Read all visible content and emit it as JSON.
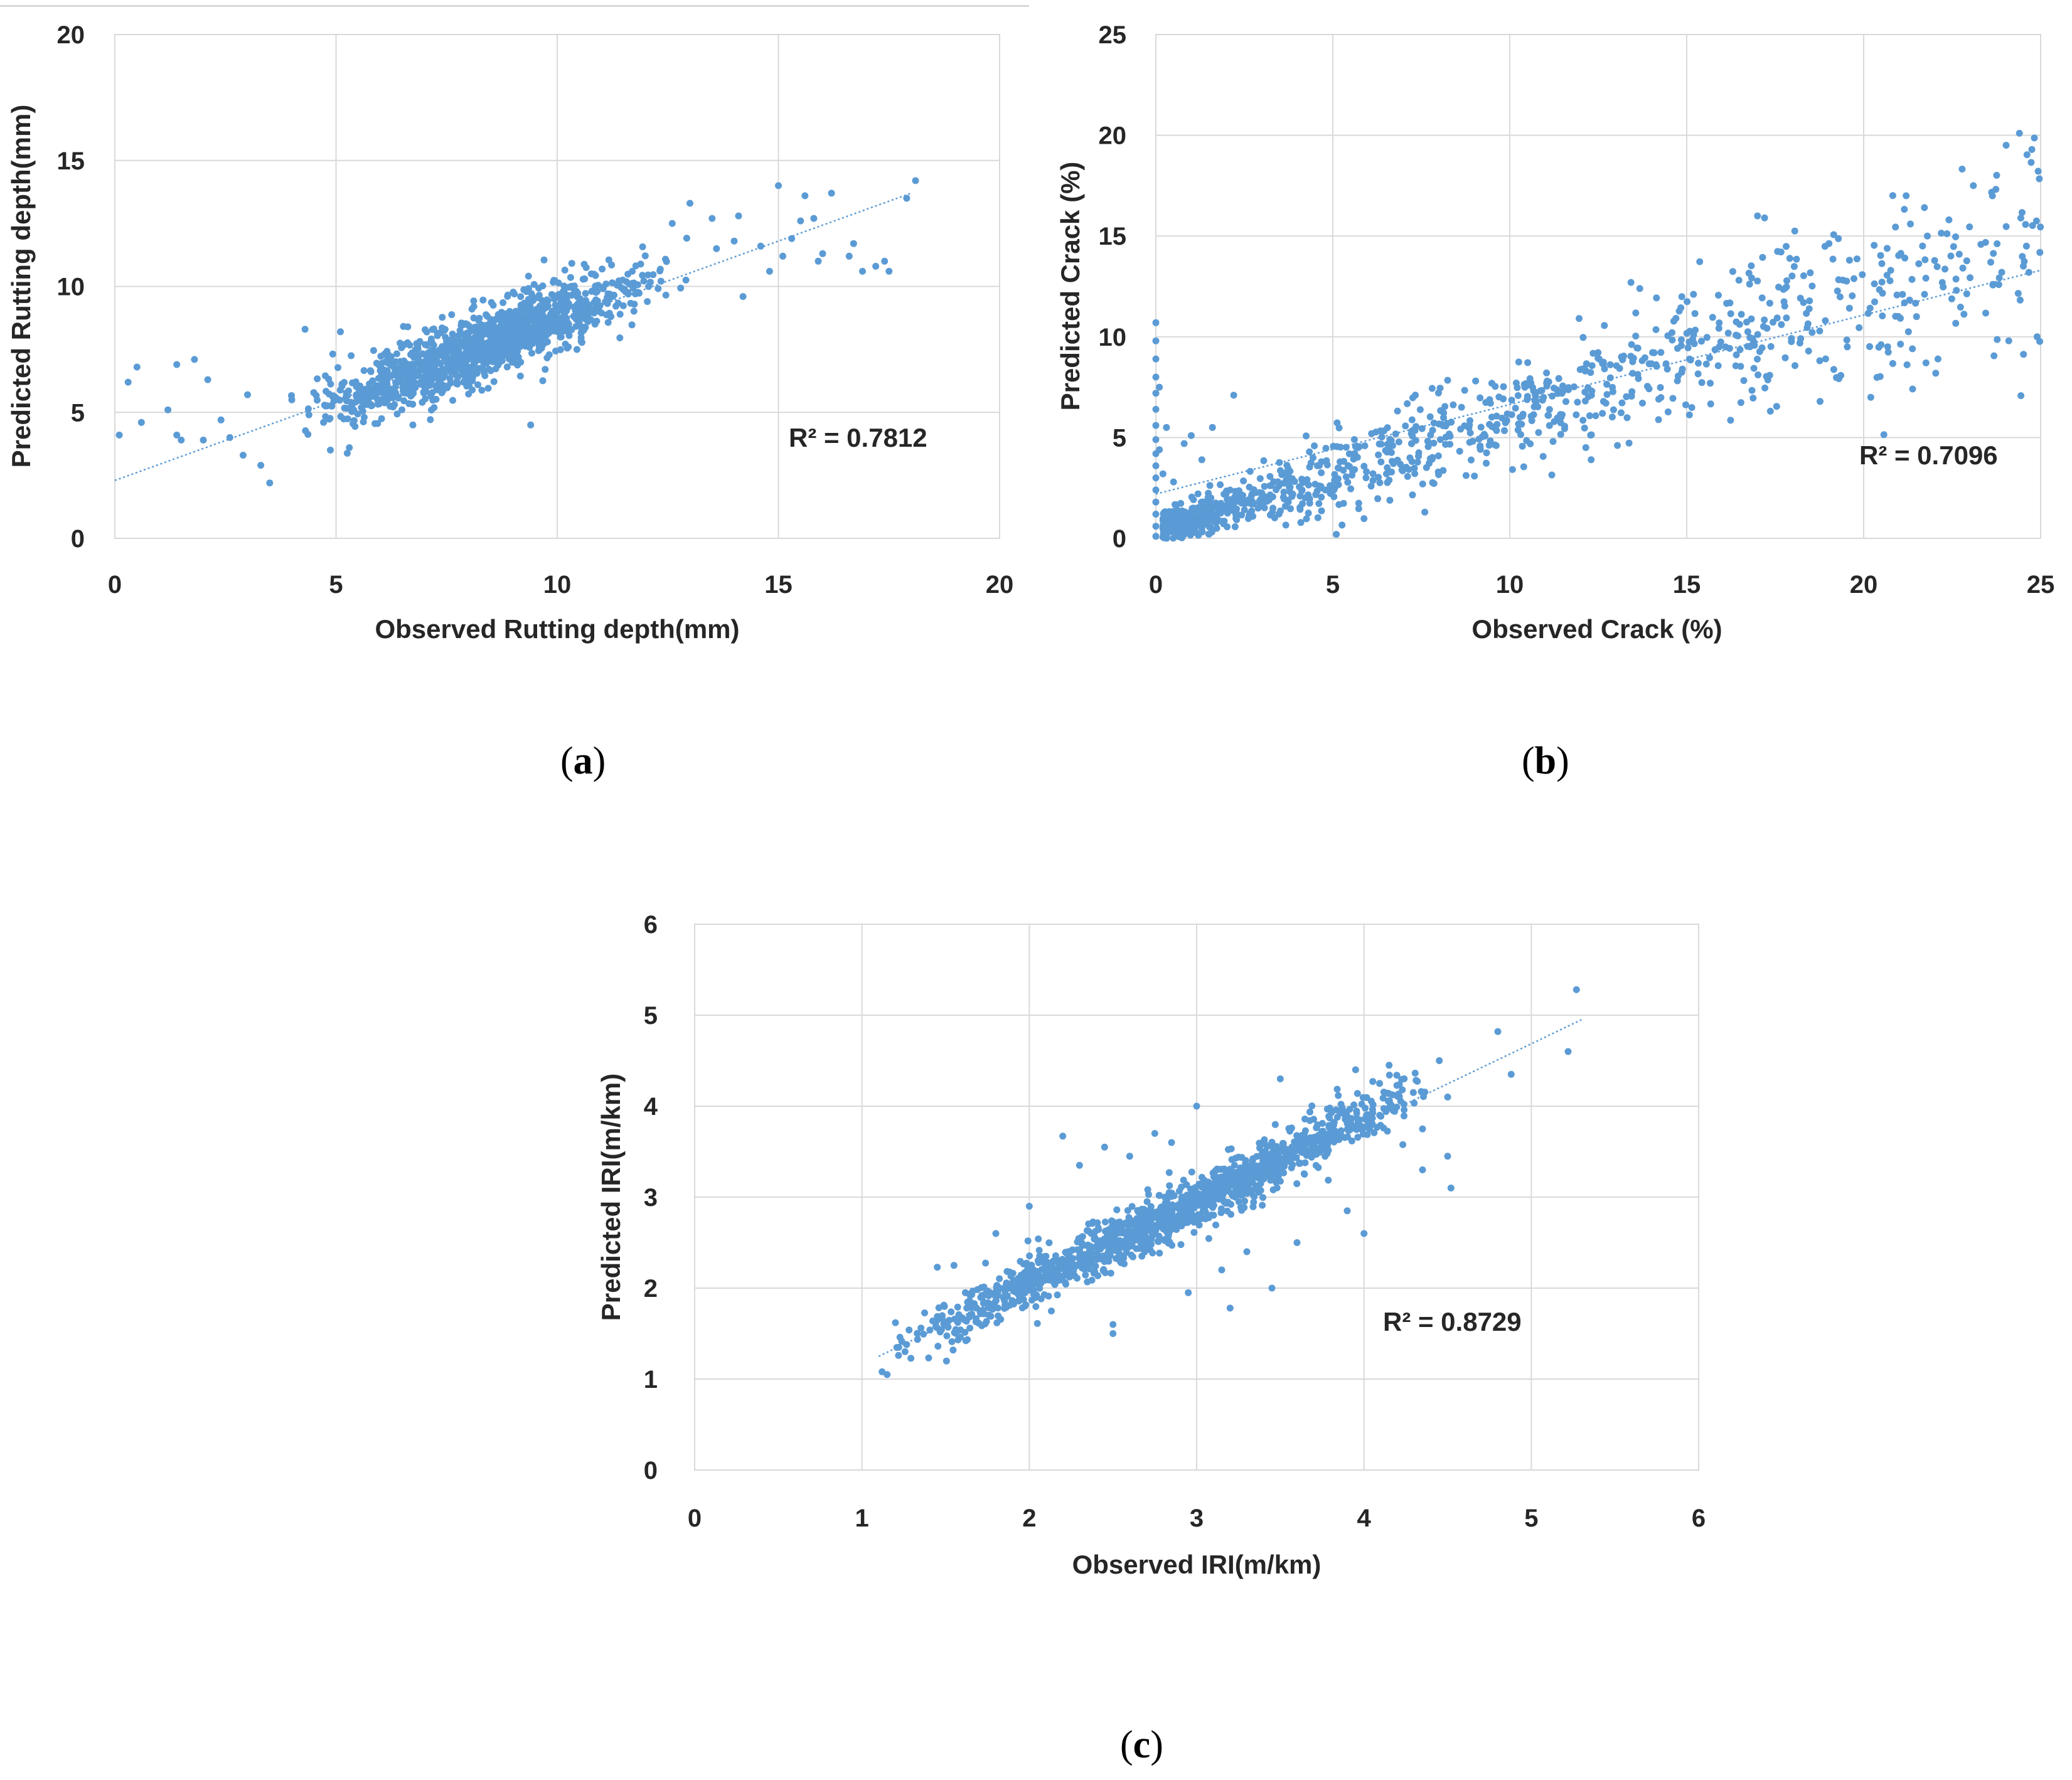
{
  "chart_data": [
    {
      "id": "a",
      "type": "scatter",
      "caption_letter": "a",
      "xlabel": "Observed Rutting depth(mm)",
      "ylabel": "Predicted Rutting depth(mm)",
      "xlim": [
        0,
        20
      ],
      "ylim": [
        0,
        20
      ],
      "xticks": [
        0,
        5,
        10,
        15,
        20
      ],
      "yticks": [
        0,
        5,
        10,
        15,
        20
      ],
      "grid": true,
      "marker_color": "#5b9bd5",
      "r2_text": "R² = 0.7812",
      "trendline": {
        "x": [
          0,
          18
        ],
        "y": [
          2.3,
          13.7
        ]
      },
      "cluster": {
        "x_min": 3.2,
        "x_max": 13.5,
        "slope": 0.68,
        "intercept": 2.0,
        "n": 1300,
        "spread": 0.75
      },
      "outliers": [
        [
          0.1,
          4.1
        ],
        [
          0.3,
          6.2
        ],
        [
          0.5,
          6.8
        ],
        [
          0.6,
          4.6
        ],
        [
          1.2,
          5.1
        ],
        [
          1.4,
          6.9
        ],
        [
          1.4,
          4.1
        ],
        [
          1.5,
          3.9
        ],
        [
          1.8,
          7.1
        ],
        [
          2.0,
          3.9
        ],
        [
          2.1,
          6.3
        ],
        [
          2.4,
          4.7
        ],
        [
          2.6,
          4.0
        ],
        [
          2.9,
          3.3
        ],
        [
          3.0,
          5.7
        ],
        [
          3.3,
          2.9
        ],
        [
          3.5,
          2.2
        ],
        [
          4.0,
          5.5
        ],
        [
          4.3,
          8.3
        ],
        [
          5.3,
          3.6
        ],
        [
          5.1,
          8.2
        ],
        [
          9.4,
          4.5
        ],
        [
          12.6,
          12.5
        ],
        [
          13.0,
          13.3
        ],
        [
          13.5,
          12.7
        ],
        [
          14.1,
          12.8
        ],
        [
          14.2,
          9.6
        ],
        [
          14.6,
          11.6
        ],
        [
          14.8,
          10.6
        ],
        [
          15.0,
          14.0
        ],
        [
          15.1,
          11.2
        ],
        [
          15.3,
          11.9
        ],
        [
          15.5,
          12.6
        ],
        [
          15.6,
          13.6
        ],
        [
          15.8,
          12.7
        ],
        [
          16.0,
          11.3
        ],
        [
          16.2,
          13.7
        ],
        [
          16.6,
          11.2
        ],
        [
          16.7,
          11.7
        ],
        [
          16.9,
          10.6
        ],
        [
          17.2,
          10.8
        ],
        [
          17.4,
          11.0
        ],
        [
          17.9,
          13.5
        ],
        [
          18.1,
          14.2
        ],
        [
          13.6,
          11.5
        ],
        [
          14.0,
          11.8
        ],
        [
          15.9,
          11.0
        ],
        [
          17.5,
          10.6
        ]
      ]
    },
    {
      "id": "b",
      "type": "scatter",
      "caption_letter": "b",
      "xlabel": "Observed Crack (%)",
      "ylabel": "Predicted Crack (%)",
      "xlim": [
        0,
        25
      ],
      "ylim": [
        0,
        25
      ],
      "xticks": [
        0,
        5,
        10,
        15,
        20,
        25
      ],
      "yticks": [
        0,
        5,
        10,
        15,
        20,
        25
      ],
      "grid": true,
      "marker_color": "#5b9bd5",
      "r2_text": "R² = 0.7096",
      "trendline": {
        "x": [
          0,
          25
        ],
        "y": [
          2.2,
          13.3
        ]
      },
      "cluster": {
        "x_min": 0.2,
        "x_max": 25.0,
        "slope": 0.58,
        "intercept": 0.3,
        "n": 1100,
        "spread": 1.1
      },
      "outliers": [
        [
          0.0,
          10.7
        ],
        [
          0.0,
          9.8
        ],
        [
          0.0,
          8.9
        ],
        [
          0.0,
          8.0
        ],
        [
          0.0,
          7.2
        ],
        [
          0.0,
          6.4
        ],
        [
          0.0,
          5.6
        ],
        [
          0.0,
          4.9
        ],
        [
          0.0,
          4.2
        ],
        [
          0.0,
          3.6
        ],
        [
          0.0,
          3.0
        ],
        [
          0.0,
          2.4
        ],
        [
          0.0,
          1.8
        ],
        [
          0.0,
          1.2
        ],
        [
          0.0,
          0.6
        ],
        [
          0.0,
          0.1
        ],
        [
          0.1,
          7.5
        ],
        [
          0.1,
          4.4
        ],
        [
          0.2,
          3.2
        ],
        [
          0.3,
          5.5
        ],
        [
          0.5,
          2.8
        ],
        [
          0.8,
          4.7
        ],
        [
          1.0,
          5.1
        ],
        [
          1.3,
          3.9
        ],
        [
          2.2,
          7.1
        ],
        [
          1.6,
          5.5
        ],
        [
          24.4,
          20.1
        ],
        [
          23.1,
          17.5
        ],
        [
          21.2,
          17.0
        ],
        [
          17.0,
          16.0
        ],
        [
          17.2,
          15.9
        ],
        [
          24.9,
          10.0
        ],
        [
          24.1,
          9.8
        ],
        [
          22.1,
          8.9
        ],
        [
          20.2,
          7.0
        ],
        [
          12.3,
          3.9
        ],
        [
          7.6,
          1.3
        ],
        [
          5.1,
          0.2
        ],
        [
          16.1,
          9.5
        ],
        [
          18.3,
          11.7
        ],
        [
          19.6,
          13.8
        ],
        [
          21.8,
          15.0
        ],
        [
          22.7,
          14.1
        ],
        [
          23.9,
          13.2
        ],
        [
          24.6,
          14.5
        ]
      ]
    },
    {
      "id": "c",
      "type": "scatter",
      "caption_letter": "c",
      "xlabel": "Observed IRI(m/km)",
      "ylabel": "Predicted IRI(m/km)",
      "xlim": [
        0,
        6
      ],
      "ylim": [
        0,
        6
      ],
      "xticks": [
        0,
        1,
        2,
        3,
        4,
        5,
        6
      ],
      "yticks": [
        0,
        1,
        2,
        3,
        4,
        5,
        6
      ],
      "grid": true,
      "marker_color": "#5b9bd5",
      "r2_text": "R² = 0.8729",
      "trendline": {
        "x": [
          1.1,
          5.3
        ],
        "y": [
          1.25,
          4.95
        ]
      },
      "cluster": {
        "x_min": 1.15,
        "x_max": 4.5,
        "slope": 0.9,
        "intercept": 0.25,
        "n": 1400,
        "spread": 0.12
      },
      "outliers": [
        [
          1.12,
          1.08
        ],
        [
          1.15,
          1.05
        ],
        [
          1.2,
          1.62
        ],
        [
          1.22,
          1.35
        ],
        [
          1.45,
          2.23
        ],
        [
          1.55,
          2.25
        ],
        [
          1.8,
          2.6
        ],
        [
          2.2,
          3.67
        ],
        [
          2.3,
          3.35
        ],
        [
          2.45,
          3.55
        ],
        [
          2.5,
          1.5
        ],
        [
          2.5,
          1.6
        ],
        [
          2.75,
          3.7
        ],
        [
          2.85,
          3.6
        ],
        [
          2.95,
          1.95
        ],
        [
          3.2,
          1.78
        ],
        [
          3.45,
          2.0
        ],
        [
          3.5,
          4.3
        ],
        [
          3.6,
          2.5
        ],
        [
          3.7,
          3.5
        ],
        [
          3.9,
          2.85
        ],
        [
          3.95,
          4.4
        ],
        [
          4.05,
          3.8
        ],
        [
          4.15,
          4.45
        ],
        [
          4.35,
          3.3
        ],
        [
          4.45,
          4.5
        ],
        [
          4.5,
          3.45
        ],
        [
          4.52,
          3.1
        ],
        [
          4.5,
          4.1
        ],
        [
          4.8,
          4.82
        ],
        [
          4.88,
          4.35
        ],
        [
          5.22,
          4.6
        ],
        [
          5.27,
          5.28
        ],
        [
          4.0,
          2.6
        ],
        [
          3.3,
          2.4
        ],
        [
          3.0,
          4.0
        ],
        [
          2.0,
          2.9
        ],
        [
          4.35,
          3.75
        ],
        [
          3.15,
          2.2
        ],
        [
          2.6,
          3.45
        ]
      ]
    }
  ]
}
